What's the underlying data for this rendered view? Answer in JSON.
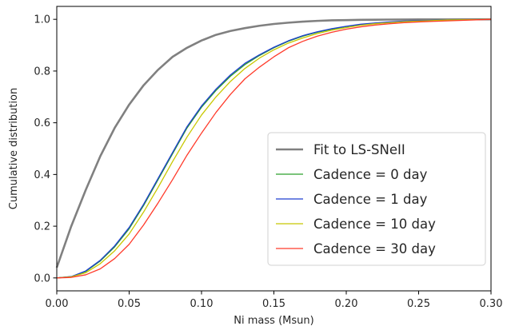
{
  "chart_data": {
    "type": "line",
    "title": "",
    "xlabel": "Ni mass (Msun)",
    "ylabel": "Cumulative distribution",
    "xlim": [
      0.0,
      0.3
    ],
    "ylim": [
      -0.05,
      1.05
    ],
    "xticks": [
      0.0,
      0.05,
      0.1,
      0.15,
      0.2,
      0.25,
      0.3
    ],
    "xtick_labels": [
      "0.00",
      "0.05",
      "0.10",
      "0.15",
      "0.20",
      "0.25",
      "0.30"
    ],
    "yticks": [
      0.0,
      0.2,
      0.4,
      0.6,
      0.8,
      1.0
    ],
    "ytick_labels": [
      "0.0",
      "0.2",
      "0.4",
      "0.6",
      "0.8",
      "1.0"
    ],
    "grid": false,
    "legend_position": "lower-right",
    "x": [
      0.0,
      0.01,
      0.02,
      0.03,
      0.04,
      0.05,
      0.06,
      0.07,
      0.08,
      0.09,
      0.1,
      0.11,
      0.12,
      0.13,
      0.14,
      0.15,
      0.16,
      0.17,
      0.18,
      0.19,
      0.2,
      0.21,
      0.22,
      0.23,
      0.24,
      0.25,
      0.26,
      0.27,
      0.28,
      0.29,
      0.3
    ],
    "series": [
      {
        "name": "Fit to LS-SNeII",
        "color": "#808080",
        "values": [
          0.04,
          0.2,
          0.34,
          0.47,
          0.58,
          0.67,
          0.745,
          0.805,
          0.855,
          0.89,
          0.918,
          0.94,
          0.955,
          0.966,
          0.975,
          0.982,
          0.987,
          0.991,
          0.994,
          0.996,
          0.997,
          0.998,
          0.9985,
          0.999,
          0.9993,
          0.9995,
          0.9997,
          0.9998,
          0.9999,
          0.9999,
          1.0
        ]
      },
      {
        "name": "Cadence = 0 day",
        "color": "#2ca02c",
        "values": [
          0.0,
          0.005,
          0.025,
          0.065,
          0.12,
          0.19,
          0.28,
          0.38,
          0.48,
          0.58,
          0.66,
          0.725,
          0.78,
          0.825,
          0.86,
          0.89,
          0.915,
          0.935,
          0.95,
          0.962,
          0.972,
          0.98,
          0.985,
          0.989,
          0.992,
          0.994,
          0.996,
          0.997,
          0.998,
          0.999,
          1.0
        ]
      },
      {
        "name": "Cadence = 1 day",
        "color": "#1f3fd0",
        "values": [
          0.0,
          0.005,
          0.027,
          0.068,
          0.124,
          0.195,
          0.285,
          0.385,
          0.485,
          0.585,
          0.665,
          0.73,
          0.785,
          0.83,
          0.863,
          0.892,
          0.917,
          0.937,
          0.952,
          0.964,
          0.973,
          0.981,
          0.986,
          0.99,
          0.993,
          0.995,
          0.996,
          0.997,
          0.998,
          0.999,
          1.0
        ]
      },
      {
        "name": "Cadence = 10 day",
        "color": "#c8c800",
        "values": [
          0.0,
          0.004,
          0.02,
          0.055,
          0.105,
          0.17,
          0.255,
          0.35,
          0.45,
          0.545,
          0.63,
          0.7,
          0.76,
          0.81,
          0.85,
          0.882,
          0.908,
          0.928,
          0.945,
          0.958,
          0.968,
          0.977,
          0.983,
          0.987,
          0.991,
          0.993,
          0.995,
          0.997,
          0.998,
          0.999,
          1.0
        ]
      },
      {
        "name": "Cadence = 30 day",
        "color": "#ff3a2a",
        "values": [
          0.0,
          0.002,
          0.012,
          0.035,
          0.075,
          0.13,
          0.205,
          0.29,
          0.38,
          0.475,
          0.56,
          0.64,
          0.71,
          0.77,
          0.815,
          0.855,
          0.89,
          0.915,
          0.935,
          0.95,
          0.962,
          0.971,
          0.978,
          0.983,
          0.987,
          0.99,
          0.992,
          0.994,
          0.996,
          0.998,
          1.0
        ]
      }
    ]
  }
}
